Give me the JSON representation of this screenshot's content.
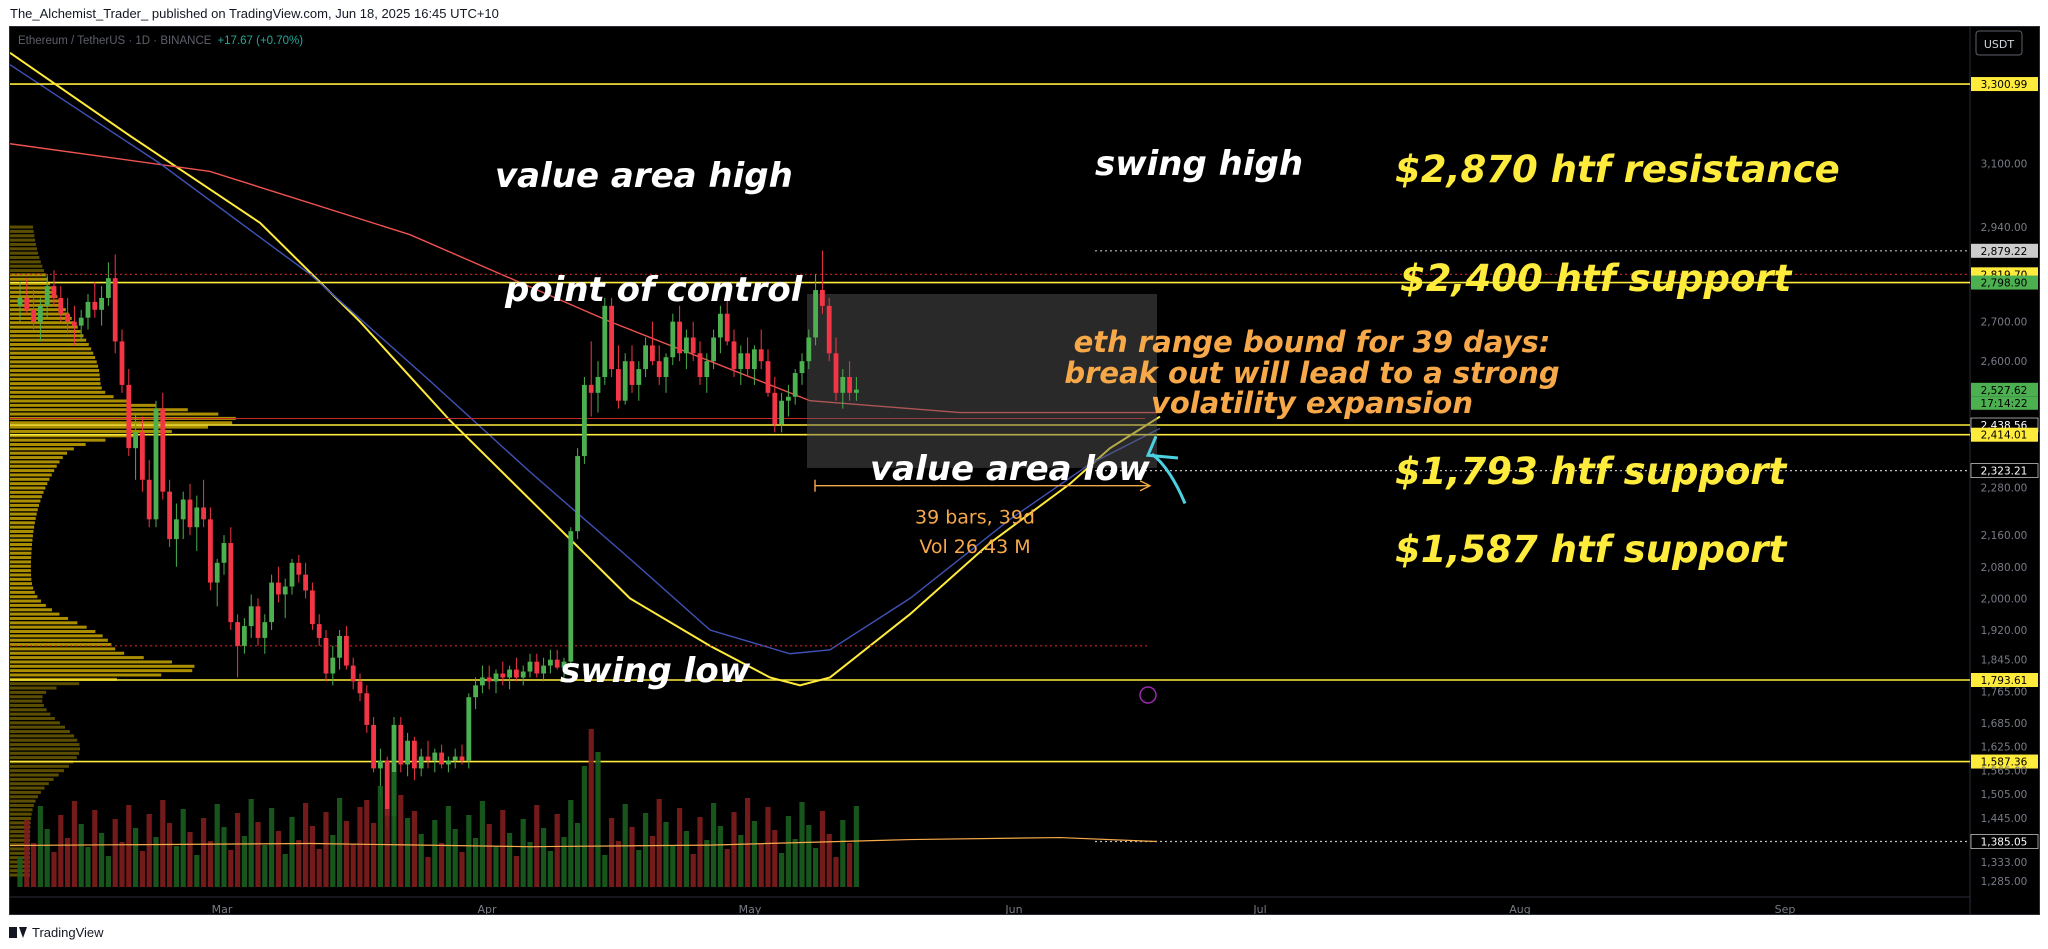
{
  "header": {
    "publisher": "The_Alchemist_Trader_",
    "published_text": "published on TradingView.com, Jun 18, 2025 16:45 UTC+10"
  },
  "symbol": {
    "name": "Ethereum / TetherUS · 1D · BINANCE",
    "change": "+17.67 (+0.70%)"
  },
  "currency_badge": "USDT",
  "footer": {
    "brand": "TradingView"
  },
  "colors": {
    "background": "#000000",
    "up": "#4caf50",
    "down": "#f23645",
    "annotation_yellow": "#ffeb3b",
    "label_orange": "#f7a94a",
    "arrow_cyan": "#4dd0e1",
    "ma_yellow": "#ffeb3b",
    "ma_red": "#ef5350",
    "ma_blue": "#3f51b5",
    "volume_profile": "#d4b000"
  },
  "chart_data": {
    "type": "candlestick",
    "timeframe": "1D",
    "x_tick_labels": [
      "Mar",
      "Apr",
      "May",
      "Jun",
      "Jul",
      "Aug",
      "Sep"
    ],
    "y_tick_labels": [
      "3,100.00",
      "2,940.00",
      "2,700.00",
      "2,600.00",
      "2,280.00",
      "2,160.00",
      "2,080.00",
      "2,000.00",
      "1,920.00",
      "1,845.00",
      "1,765.00",
      "1,685.00",
      "1,625.00",
      "1,565.00",
      "1,505.00",
      "1,445.00",
      "1,333.00",
      "1,285.00"
    ],
    "y_range": [
      1270,
      3420
    ],
    "candles": [
      [
        2740,
        2800,
        2700,
        2760
      ],
      [
        2760,
        2810,
        2720,
        2730
      ],
      [
        2730,
        2780,
        2680,
        2700
      ],
      [
        2700,
        2760,
        2650,
        2740
      ],
      [
        2740,
        2820,
        2710,
        2790
      ],
      [
        2790,
        2830,
        2740,
        2760
      ],
      [
        2760,
        2790,
        2700,
        2720
      ],
      [
        2720,
        2760,
        2670,
        2700
      ],
      [
        2700,
        2740,
        2640,
        2690
      ],
      [
        2690,
        2730,
        2650,
        2710
      ],
      [
        2710,
        2770,
        2680,
        2750
      ],
      [
        2750,
        2800,
        2710,
        2730
      ],
      [
        2730,
        2790,
        2690,
        2760
      ],
      [
        2760,
        2850,
        2740,
        2810
      ],
      [
        2810,
        2870,
        2620,
        2650
      ],
      [
        2650,
        2680,
        2520,
        2540
      ],
      [
        2540,
        2580,
        2360,
        2380
      ],
      [
        2380,
        2470,
        2300,
        2420
      ],
      [
        2420,
        2460,
        2270,
        2300
      ],
      [
        2300,
        2350,
        2180,
        2200
      ],
      [
        2200,
        2500,
        2180,
        2480
      ],
      [
        2480,
        2520,
        2250,
        2270
      ],
      [
        2270,
        2300,
        2130,
        2150
      ],
      [
        2150,
        2240,
        2080,
        2200
      ],
      [
        2200,
        2270,
        2150,
        2250
      ],
      [
        2250,
        2290,
        2160,
        2180
      ],
      [
        2180,
        2260,
        2120,
        2230
      ],
      [
        2230,
        2300,
        2180,
        2200
      ],
      [
        2200,
        2230,
        2020,
        2040
      ],
      [
        2040,
        2100,
        1980,
        2090
      ],
      [
        2090,
        2160,
        2060,
        2140
      ],
      [
        2140,
        2180,
        1920,
        1940
      ],
      [
        1940,
        1960,
        1800,
        1880
      ],
      [
        1880,
        1950,
        1860,
        1930
      ],
      [
        1930,
        2010,
        1900,
        1980
      ],
      [
        1980,
        2000,
        1880,
        1900
      ],
      [
        1900,
        1960,
        1860,
        1940
      ],
      [
        1940,
        2060,
        1920,
        2040
      ],
      [
        2040,
        2080,
        1990,
        2010
      ],
      [
        2010,
        2050,
        1950,
        2030
      ],
      [
        2030,
        2100,
        2010,
        2090
      ],
      [
        2090,
        2110,
        2040,
        2060
      ],
      [
        2060,
        2090,
        2000,
        2020
      ],
      [
        2020,
        2040,
        1920,
        1935
      ],
      [
        1935,
        1960,
        1880,
        1900
      ],
      [
        1900,
        1920,
        1790,
        1810
      ],
      [
        1810,
        1880,
        1780,
        1850
      ],
      [
        1850,
        1920,
        1820,
        1905
      ],
      [
        1905,
        1930,
        1820,
        1830
      ],
      [
        1830,
        1850,
        1770,
        1790
      ],
      [
        1790,
        1810,
        1740,
        1760
      ],
      [
        1760,
        1780,
        1660,
        1680
      ],
      [
        1680,
        1700,
        1560,
        1570
      ],
      [
        1570,
        1620,
        1500,
        1590
      ],
      [
        1590,
        1600,
        1420,
        1450
      ],
      [
        1450,
        1700,
        1390,
        1680
      ],
      [
        1680,
        1700,
        1560,
        1580
      ],
      [
        1580,
        1660,
        1550,
        1640
      ],
      [
        1640,
        1650,
        1540,
        1570
      ],
      [
        1570,
        1620,
        1550,
        1600
      ],
      [
        1600,
        1640,
        1570,
        1590
      ],
      [
        1590,
        1620,
        1560,
        1610
      ],
      [
        1610,
        1630,
        1570,
        1580
      ],
      [
        1580,
        1600,
        1560,
        1590
      ],
      [
        1590,
        1620,
        1570,
        1600
      ],
      [
        1600,
        1630,
        1580,
        1590
      ],
      [
        1590,
        1760,
        1570,
        1750
      ],
      [
        1750,
        1800,
        1720,
        1780
      ],
      [
        1780,
        1830,
        1760,
        1800
      ],
      [
        1800,
        1830,
        1770,
        1790
      ],
      [
        1790,
        1820,
        1760,
        1810
      ],
      [
        1810,
        1840,
        1780,
        1800
      ],
      [
        1800,
        1830,
        1770,
        1820
      ],
      [
        1820,
        1850,
        1790,
        1800
      ],
      [
        1800,
        1830,
        1780,
        1815
      ],
      [
        1815,
        1860,
        1800,
        1840
      ],
      [
        1840,
        1860,
        1800,
        1810
      ],
      [
        1810,
        1850,
        1790,
        1830
      ],
      [
        1830,
        1870,
        1810,
        1845
      ],
      [
        1845,
        1870,
        1820,
        1825
      ],
      [
        1825,
        1850,
        1800,
        1840
      ],
      [
        1840,
        2180,
        1830,
        2170
      ],
      [
        2170,
        2380,
        2150,
        2360
      ],
      [
        2360,
        2560,
        2340,
        2540
      ],
      [
        2540,
        2650,
        2460,
        2520
      ],
      [
        2520,
        2600,
        2470,
        2560
      ],
      [
        2560,
        2760,
        2540,
        2740
      ],
      [
        2740,
        2760,
        2560,
        2580
      ],
      [
        2580,
        2640,
        2480,
        2500
      ],
      [
        2500,
        2620,
        2490,
        2600
      ],
      [
        2600,
        2640,
        2520,
        2540
      ],
      [
        2540,
        2600,
        2500,
        2580
      ],
      [
        2580,
        2660,
        2560,
        2640
      ],
      [
        2640,
        2700,
        2590,
        2600
      ],
      [
        2600,
        2640,
        2540,
        2560
      ],
      [
        2560,
        2620,
        2520,
        2610
      ],
      [
        2610,
        2720,
        2590,
        2700
      ],
      [
        2700,
        2740,
        2600,
        2620
      ],
      [
        2620,
        2680,
        2580,
        2660
      ],
      [
        2660,
        2700,
        2600,
        2620
      ],
      [
        2620,
        2650,
        2540,
        2560
      ],
      [
        2560,
        2620,
        2520,
        2600
      ],
      [
        2600,
        2680,
        2580,
        2660
      ],
      [
        2660,
        2740,
        2620,
        2720
      ],
      [
        2720,
        2760,
        2640,
        2650
      ],
      [
        2650,
        2680,
        2560,
        2580
      ],
      [
        2580,
        2640,
        2540,
        2620
      ],
      [
        2620,
        2660,
        2560,
        2580
      ],
      [
        2580,
        2640,
        2540,
        2630
      ],
      [
        2630,
        2680,
        2580,
        2600
      ],
      [
        2600,
        2630,
        2510,
        2520
      ],
      [
        2520,
        2560,
        2420,
        2440
      ],
      [
        2440,
        2520,
        2420,
        2500
      ],
      [
        2500,
        2540,
        2460,
        2510
      ],
      [
        2510,
        2580,
        2490,
        2570
      ],
      [
        2570,
        2620,
        2540,
        2600
      ],
      [
        2600,
        2680,
        2580,
        2660
      ],
      [
        2660,
        2820,
        2640,
        2780
      ],
      [
        2780,
        2880,
        2720,
        2740
      ],
      [
        2740,
        2760,
        2600,
        2620
      ],
      [
        2620,
        2660,
        2500,
        2520
      ],
      [
        2520,
        2580,
        2480,
        2560
      ],
      [
        2560,
        2600,
        2500,
        2520
      ],
      [
        2520,
        2560,
        2500,
        2528
      ]
    ],
    "horizontal_levels": [
      {
        "price": 3300.99,
        "label": "3,300.99",
        "style": "solid",
        "color": "#ffeb3b"
      },
      {
        "price": 2879.22,
        "label": "2,879.22",
        "style": "dotted",
        "color": "#cccccc"
      },
      {
        "price": 2819.7,
        "label": "2,819.70",
        "style": "dotted-red",
        "color": "#ffeb3b"
      },
      {
        "price": 2798.9,
        "label": "2,798.90",
        "style": "solid",
        "color": "#ffeb3b",
        "badge": "green"
      },
      {
        "price": 2527.62,
        "label": "2,527.62",
        "style": "none",
        "color": "#4caf50",
        "badge": "green"
      },
      {
        "price": 2438.56,
        "label": "2,438.56",
        "style": "solid",
        "color": "#ffeb3b",
        "badge": "black"
      },
      {
        "price": 2414.01,
        "label": "2,414.01",
        "style": "solid",
        "color": "#ffeb3b"
      },
      {
        "price": 2323.21,
        "label": "2,323.21",
        "style": "dotted",
        "color": "#cccccc",
        "badge": "black"
      },
      {
        "price": 1793.61,
        "label": "1,793.61",
        "style": "solid",
        "color": "#ffeb3b"
      },
      {
        "price": 1587.36,
        "label": "1,587.36",
        "style": "solid",
        "color": "#ffeb3b"
      },
      {
        "price": 1385.05,
        "label": "1,385.05",
        "style": "dotted",
        "color": "#cccccc",
        "badge": "black"
      }
    ],
    "countdown": "17:14:22",
    "annotations": [
      "value area high",
      "swing high",
      "$2,870 htf resistance",
      "point of control",
      "$2,400 htf support",
      "value area low",
      "$1,793 htf support",
      "$1,587 htf support",
      "swing low",
      "eth range bound for 39 days:",
      "break out will lead to a strong",
      "volatility expansion"
    ],
    "range_box": {
      "price_top": 2770,
      "price_bottom": 2330,
      "measure_line_1": "39 bars, 39d",
      "measure_line_2": "Vol 26.43 M"
    }
  }
}
